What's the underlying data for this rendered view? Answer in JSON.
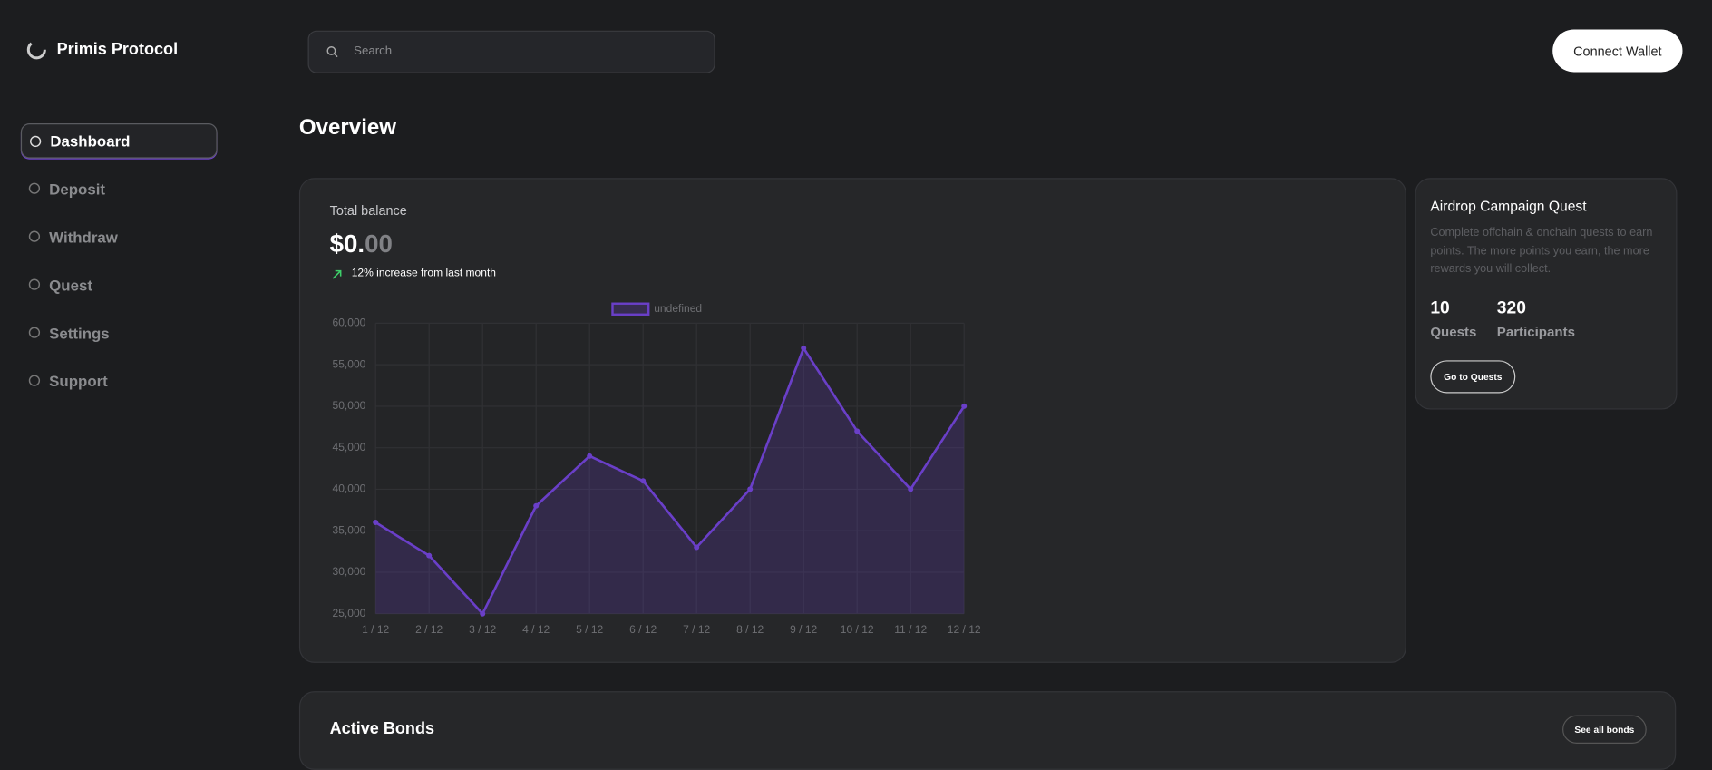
{
  "brand": {
    "name": "Primis Protocol"
  },
  "search": {
    "placeholder": "Search"
  },
  "connect_button": "Connect Wallet",
  "nav": [
    "Dashboard",
    "Deposit",
    "Withdraw",
    "Quest",
    "Settings",
    "Support"
  ],
  "page_title": "Overview",
  "balance": {
    "label": "Total balance",
    "amount_main": "$0.",
    "amount_cents": "00",
    "change": "12% increase from last month"
  },
  "chart_data": {
    "type": "line",
    "categories": [
      "1 / 12",
      "2 / 12",
      "3 / 12",
      "4 / 12",
      "5 / 12",
      "6 / 12",
      "7 / 12",
      "8 / 12",
      "9 / 12",
      "10 / 12",
      "11 / 12",
      "12 / 12"
    ],
    "series": [
      {
        "name": "undefined",
        "color": "#6a3fc8",
        "values": [
          36000,
          32000,
          25000,
          38000,
          44000,
          41000,
          33000,
          40000,
          57000,
          47000,
          40000,
          50000
        ]
      }
    ],
    "ylim": [
      25000,
      60000
    ],
    "yticks": [
      {
        "value": 25000,
        "label": "25,000"
      },
      {
        "value": 30000,
        "label": "30,000"
      },
      {
        "value": 35000,
        "label": "35,000"
      },
      {
        "value": 40000,
        "label": "40,000"
      },
      {
        "value": 45000,
        "label": "45,000"
      },
      {
        "value": 50000,
        "label": "50,000"
      },
      {
        "value": 55000,
        "label": "55,000"
      },
      {
        "value": 60000,
        "label": "60,000"
      }
    ],
    "grid": true,
    "legend": "top"
  },
  "quest_card": {
    "title": "Airdrop Campaign Quest",
    "description": "Complete offchain & onchain quests to earn points. The more points you earn, the more rewards you will collect.",
    "stats": [
      {
        "value": "10",
        "label": "Quests"
      },
      {
        "value": "320",
        "label": "Participants"
      }
    ],
    "button": "Go to Quests"
  },
  "bonds": {
    "title": "Active Bonds",
    "button": "See all bonds"
  }
}
